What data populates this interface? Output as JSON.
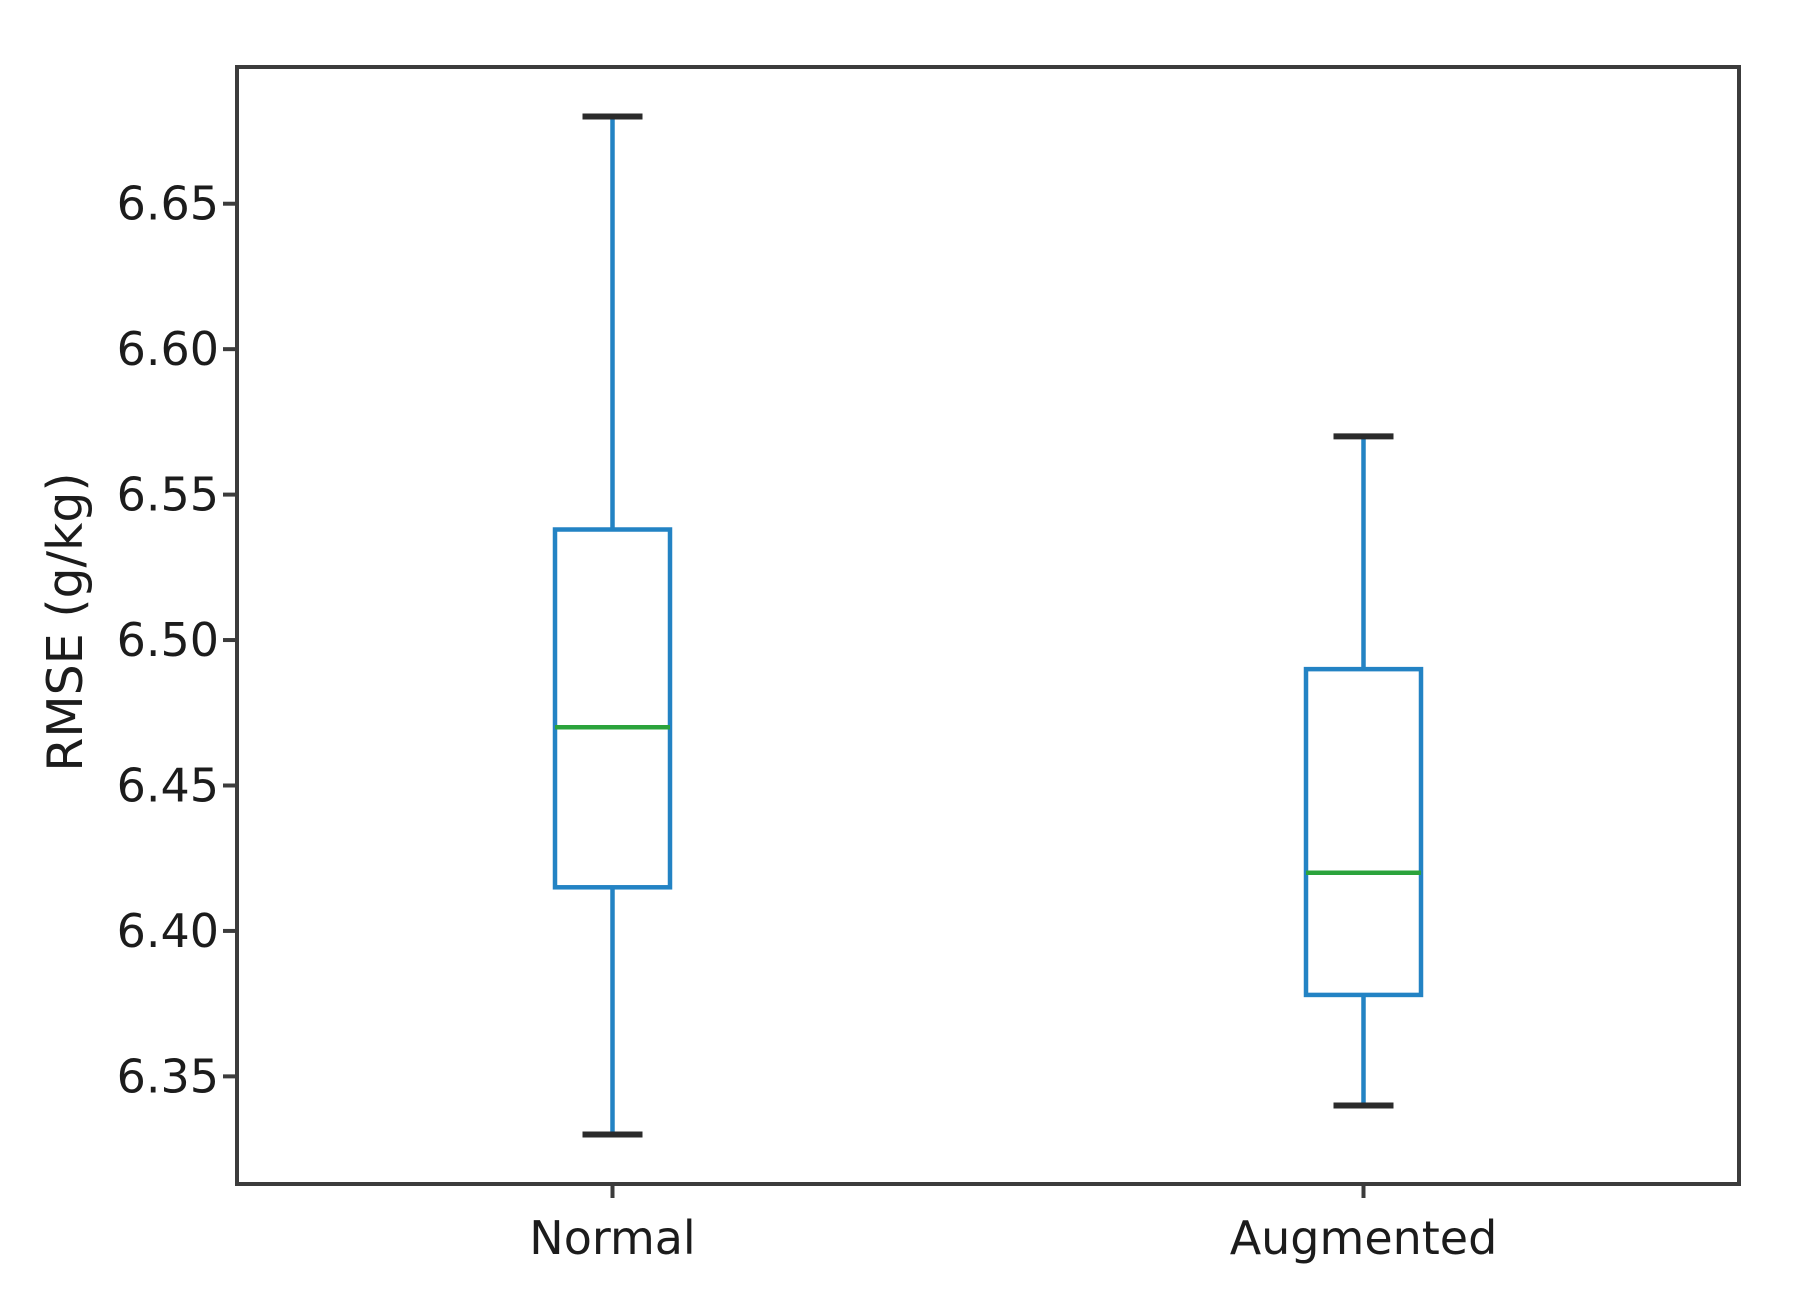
{
  "figure": {
    "background": "#ffffff"
  },
  "chart_data": {
    "type": "box",
    "title": "",
    "xlabel": "",
    "ylabel": "RMSE (g/kg)",
    "categories": [
      "Normal",
      "Augmented"
    ],
    "series": [
      {
        "name": "Normal",
        "whisker_low": 6.33,
        "q1": 6.415,
        "median": 6.47,
        "q3": 6.538,
        "whisker_high": 6.68
      },
      {
        "name": "Augmented",
        "whisker_low": 6.34,
        "q1": 6.378,
        "median": 6.42,
        "q3": 6.49,
        "whisker_high": 6.57
      }
    ],
    "ylim": [
      6.313,
      6.697
    ],
    "yticks": [
      6.35,
      6.4,
      6.45,
      6.5,
      6.55,
      6.6,
      6.65
    ],
    "ytick_labels": [
      "6.35",
      "6.40",
      "6.45",
      "6.50",
      "6.55",
      "6.60",
      "6.65"
    ],
    "grid": false,
    "legend_position": "none",
    "colors": {
      "box": "#2383c4",
      "whisker": "#2383c4",
      "median": "#2ba33c",
      "cap": "#2b2b2b",
      "axis": "#3c3c3c",
      "text": "#1c1c1c"
    }
  }
}
